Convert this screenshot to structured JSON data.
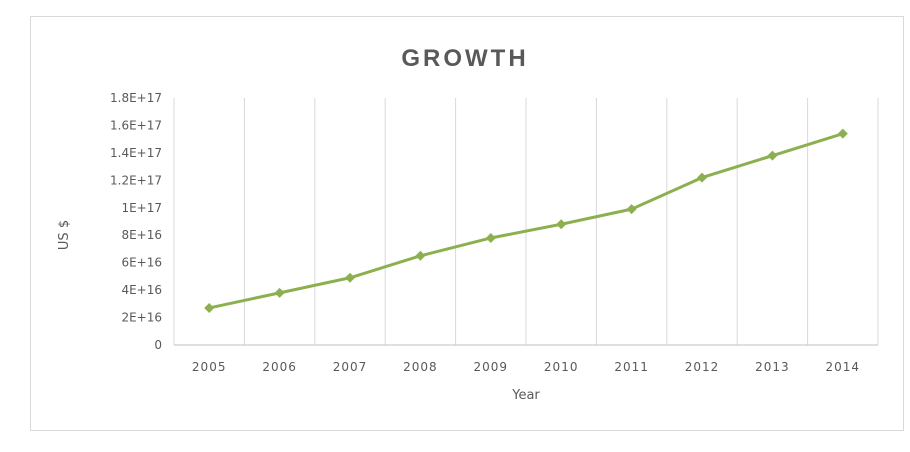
{
  "chart_data": {
    "type": "line",
    "title": "GROWTH",
    "xlabel": "Year",
    "ylabel": "US $",
    "categories": [
      "2005",
      "2006",
      "2007",
      "2008",
      "2009",
      "2010",
      "2011",
      "2012",
      "2013",
      "2014"
    ],
    "series": [
      {
        "values": [
          2.7e+16,
          3.8e+16,
          4.9e+16,
          6.5e+16,
          7.8e+16,
          8.8e+16,
          9.9e+16,
          1.22e+17,
          1.38e+17,
          1.54e+17
        ]
      }
    ],
    "ylim": [
      0,
      1.8e+17
    ],
    "y_ticks": [
      0,
      2e+16,
      4e+16,
      6e+16,
      8e+16,
      1e+17,
      1.2e+17,
      1.4e+17,
      1.6e+17,
      1.8e+17
    ],
    "y_tick_labels": [
      "0",
      "2E+16",
      "4E+16",
      "6E+16",
      "8E+16",
      "1E+17",
      "1.2E+17",
      "1.4E+17",
      "1.6E+17",
      "1.8E+17"
    ],
    "grid": "vertical",
    "legend": "none",
    "colors": {
      "line": "#8cb04f",
      "marker": "#8cb04f",
      "grid": "#d9d9d9",
      "axis": "#bfbfbf",
      "text": "#595959"
    }
  }
}
